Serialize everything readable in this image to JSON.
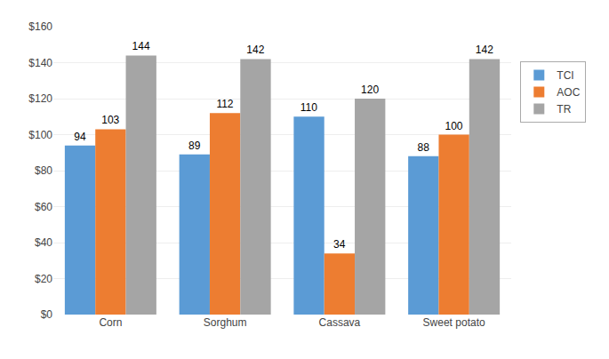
{
  "chart_data": {
    "type": "bar",
    "categories": [
      "Corn",
      "Sorghum",
      "Cassava",
      "Sweet potato"
    ],
    "series": [
      {
        "name": "TCI",
        "color": "#5B9BD5",
        "values": [
          94,
          89,
          110,
          88
        ]
      },
      {
        "name": "AOC",
        "color": "#ED7D31",
        "values": [
          103,
          112,
          34,
          100
        ]
      },
      {
        "name": "TR",
        "color": "#A5A5A5",
        "values": [
          144,
          142,
          120,
          142
        ]
      }
    ],
    "ylim": [
      0,
      160
    ],
    "yticks": [
      {
        "value": 0,
        "label": "$0"
      },
      {
        "value": 20,
        "label": "$20"
      },
      {
        "value": 40,
        "label": "$40"
      },
      {
        "value": 60,
        "label": "$60"
      },
      {
        "value": 80,
        "label": "$80"
      },
      {
        "value": 100,
        "label": "$100"
      },
      {
        "value": 120,
        "label": "$120"
      },
      {
        "value": 140,
        "label": "$140"
      },
      {
        "value": 160,
        "label": "$160"
      }
    ],
    "grid": true,
    "legend": "right",
    "data_labels": true
  }
}
